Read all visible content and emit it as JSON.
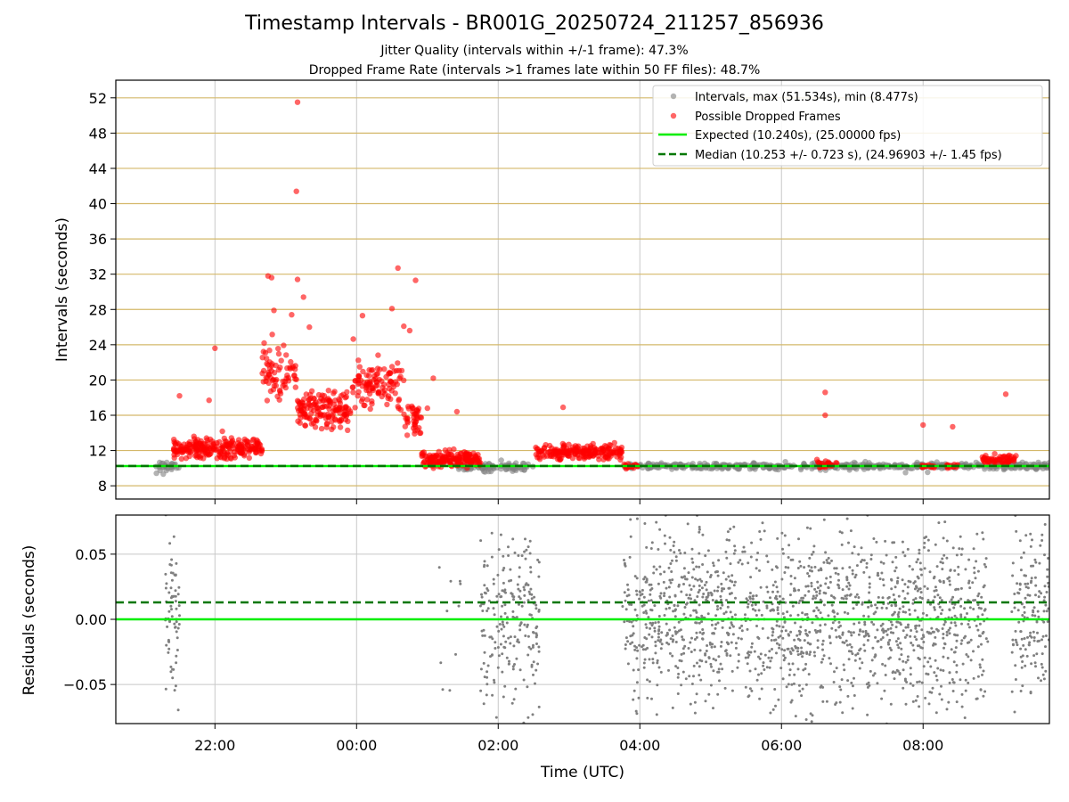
{
  "header": {
    "title": "Timestamp Intervals - BR001G_20250724_211257_856936",
    "subtitle_1": "Jitter Quality (intervals within +/-1 frame): 47.3%",
    "subtitle_2": "Dropped Frame Rate (intervals >1 frames late within 50 FF files): 48.7%"
  },
  "colors": {
    "intervals": "#808080",
    "dropped": "#ff0000",
    "expected": "#00ee00",
    "median": "#007700",
    "hgrid_top": "#d4b86a",
    "grid": "#c8c8c8"
  },
  "chart_data": [
    {
      "type": "scatter",
      "id": "intervals-panel",
      "ylabel": "Intervals (seconds)",
      "ylim": [
        6.5,
        54
      ],
      "yticks": [
        8,
        12,
        16,
        20,
        24,
        28,
        32,
        36,
        40,
        44,
        48,
        52
      ],
      "ytick_labels": [
        "8",
        "12",
        "16",
        "20",
        "24",
        "28",
        "32",
        "36",
        "40",
        "44",
        "48",
        "52"
      ],
      "xlim": [
        "2025-07-24 20:36",
        "2025-07-25 09:47"
      ],
      "grid": "on",
      "legend_placement": "top-right",
      "legend": [
        "Intervals, max (51.534s), min (8.477s)",
        "Possible Dropped Frames",
        "Expected (10.240s), (25.00000 fps)",
        "Median (10.253 +/- 0.723 s), (24.96903 +/- 1.45 fps)"
      ],
      "reference_lines": {
        "expected": 10.24,
        "median": 10.253
      },
      "segments": [
        {
          "series": "intervals",
          "t_start": "21:10",
          "t_end": "21:30",
          "y": 10.25,
          "spread": 0.6,
          "count": 30
        },
        {
          "series": "dropped",
          "t_start": "21:25",
          "t_end": "22:40",
          "y": 12.3,
          "spread": 1.3,
          "count": 240
        },
        {
          "series": "dropped",
          "t_start": "22:40",
          "t_end": "23:10",
          "y": 20.5,
          "spread": 3.0,
          "count": 70
        },
        {
          "series": "dropped",
          "t_start": "23:10",
          "t_end": "23:55",
          "y": 16.5,
          "spread": 2.3,
          "count": 150
        },
        {
          "series": "dropped",
          "t_start": "23:55",
          "t_end": "00:40",
          "y": 19.5,
          "spread": 3.0,
          "count": 110
        },
        {
          "series": "dropped",
          "t_start": "00:40",
          "t_end": "00:55",
          "y": 15.5,
          "spread": 2.0,
          "count": 40
        },
        {
          "series": "dropped",
          "t_start": "00:55",
          "t_end": "01:45",
          "y": 11.0,
          "spread": 1.0,
          "count": 170
        },
        {
          "series": "intervals",
          "t_start": "01:25",
          "t_end": "02:30",
          "y": 10.15,
          "spread": 0.5,
          "count": 90
        },
        {
          "series": "dropped",
          "t_start": "02:30",
          "t_end": "03:45",
          "y": 11.8,
          "spread": 0.9,
          "count": 200
        },
        {
          "series": "intervals",
          "t_start": "03:45",
          "t_end": "09:47",
          "y": 10.24,
          "spread": 0.35,
          "count": 520
        },
        {
          "series": "dropped",
          "t_start": "03:45",
          "t_end": "03:58",
          "y": 10.2,
          "spread": 0.3,
          "count": 20
        },
        {
          "series": "dropped",
          "t_start": "06:30",
          "t_end": "06:47",
          "y": 10.4,
          "spread": 0.5,
          "count": 25
        },
        {
          "series": "dropped",
          "t_start": "07:58",
          "t_end": "08:10",
          "y": 10.2,
          "spread": 0.3,
          "count": 14
        },
        {
          "series": "dropped",
          "t_start": "08:20",
          "t_end": "08:30",
          "y": 10.2,
          "spread": 0.3,
          "count": 14
        },
        {
          "series": "dropped",
          "t_start": "08:50",
          "t_end": "09:20",
          "y": 11.0,
          "spread": 0.6,
          "count": 60
        }
      ],
      "outliers": [
        {
          "t": "21:30",
          "y": 18.2
        },
        {
          "t": "21:55",
          "y": 17.7
        },
        {
          "t": "22:00",
          "y": 23.6
        },
        {
          "t": "22:45",
          "y": 31.8
        },
        {
          "t": "22:48",
          "y": 31.6
        },
        {
          "t": "22:50",
          "y": 27.9
        },
        {
          "t": "23:10",
          "y": 51.5
        },
        {
          "t": "23:09",
          "y": 41.4
        },
        {
          "t": "23:10",
          "y": 31.4
        },
        {
          "t": "23:15",
          "y": 29.4
        },
        {
          "t": "23:05",
          "y": 27.4
        },
        {
          "t": "23:20",
          "y": 26.0
        },
        {
          "t": "00:05",
          "y": 27.3
        },
        {
          "t": "00:35",
          "y": 32.7
        },
        {
          "t": "00:30",
          "y": 28.1
        },
        {
          "t": "00:50",
          "y": 31.3
        },
        {
          "t": "00:45",
          "y": 25.6
        },
        {
          "t": "00:40",
          "y": 26.1
        },
        {
          "t": "01:00",
          "y": 16.8
        },
        {
          "t": "01:05",
          "y": 20.2
        },
        {
          "t": "01:25",
          "y": 16.4
        },
        {
          "t": "02:55",
          "y": 16.9
        },
        {
          "t": "06:37",
          "y": 18.6
        },
        {
          "t": "06:37",
          "y": 16.0
        },
        {
          "t": "08:00",
          "y": 14.9
        },
        {
          "t": "08:25",
          "y": 14.7
        },
        {
          "t": "09:10",
          "y": 18.4
        }
      ]
    },
    {
      "type": "scatter",
      "id": "residuals-panel",
      "ylabel": "Residuals (seconds)",
      "xlabel": "Time (UTC)",
      "ylim": [
        -0.08,
        0.08
      ],
      "yticks": [
        -0.05,
        0.0,
        0.05
      ],
      "ytick_labels": [
        "−0.05",
        "0.00",
        "0.05"
      ],
      "xticks": [
        "22:00",
        "00:00",
        "02:00",
        "04:00",
        "06:00",
        "08:00"
      ],
      "xlim": [
        "2025-07-24 20:36",
        "2025-07-25 09:47"
      ],
      "grid": "on",
      "reference_lines": {
        "expected": 0.0,
        "median": 0.013
      },
      "clusters": [
        {
          "t_start": "21:18",
          "t_end": "21:30",
          "count": 70
        },
        {
          "t_start": "01:10",
          "t_end": "01:30",
          "count": 12
        },
        {
          "t_start": "01:45",
          "t_end": "02:35",
          "count": 220
        },
        {
          "t_start": "03:45",
          "t_end": "08:55",
          "count": 1500
        },
        {
          "t_start": "09:15",
          "t_end": "09:47",
          "count": 150
        }
      ]
    }
  ]
}
